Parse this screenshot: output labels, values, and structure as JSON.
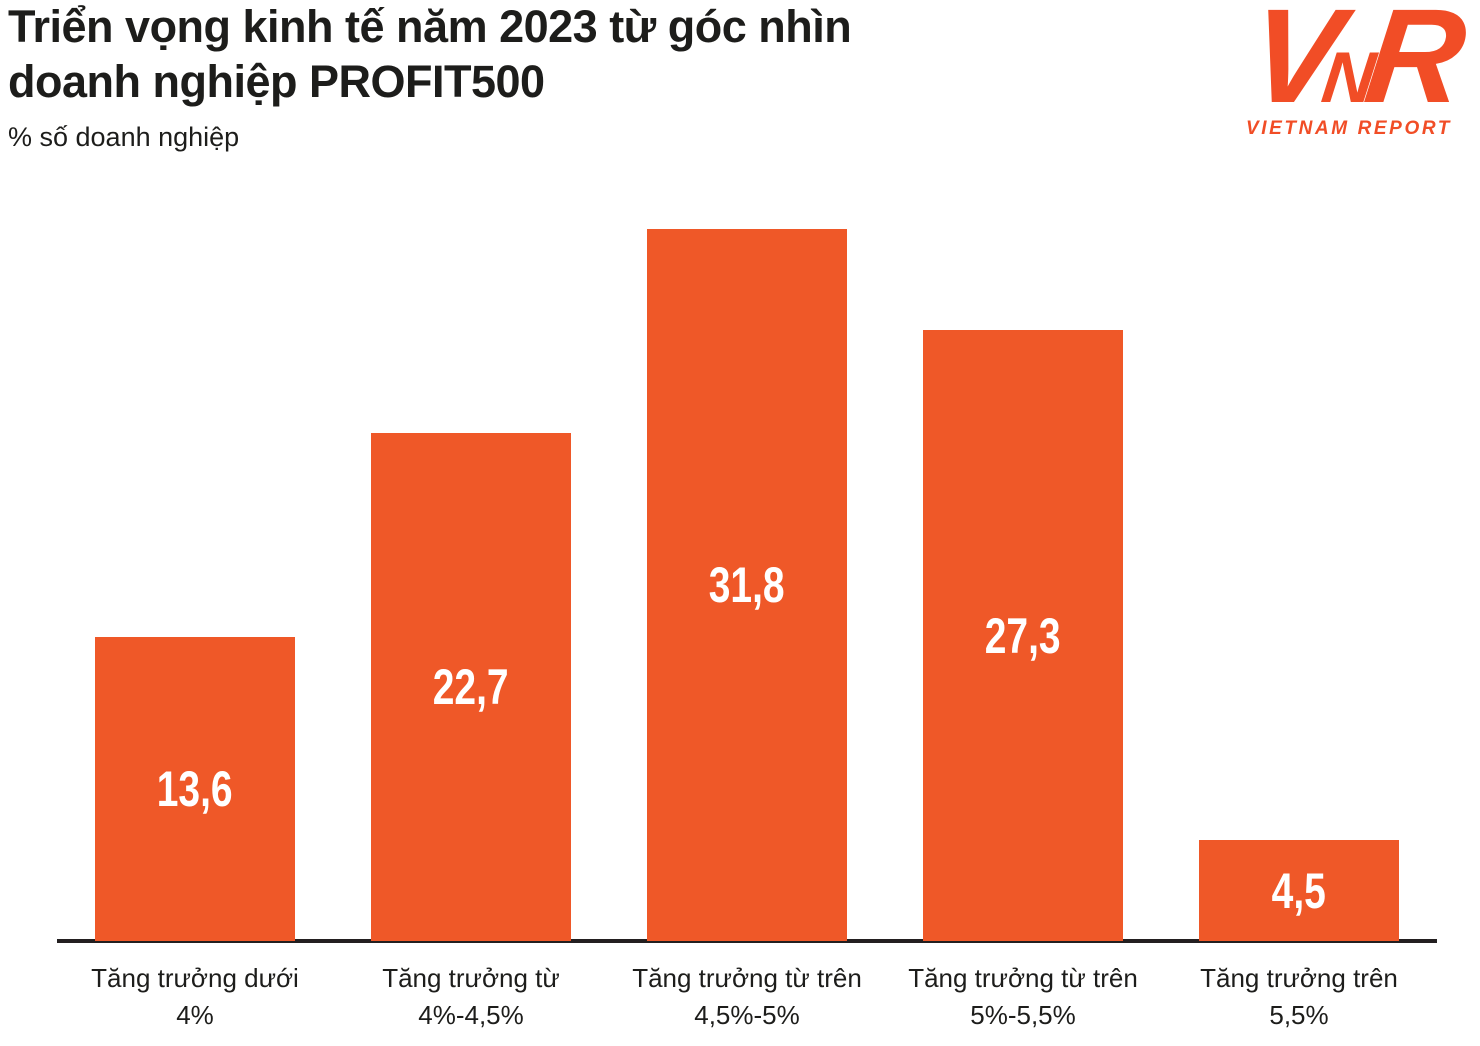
{
  "header": {
    "title": "Triển vọng kinh tế năm 2023 từ góc nhìn doanh nghiệp PROFIT500",
    "subtitle": "% số doanh nghiệp"
  },
  "logo": {
    "letter_v": "V",
    "letter_n": "N",
    "letter_r": "R",
    "caption": "VIETNAM REPORT"
  },
  "colors": {
    "bar": "#EF5828",
    "logo": "#F14D26",
    "axis": "#231F20",
    "text": "#1D1D1B",
    "value_label": "#FFFFFF"
  },
  "chart_data": {
    "type": "bar",
    "title": "Triển vọng kinh tế năm 2023 từ góc nhìn doanh nghiệp PROFIT500",
    "xlabel": "",
    "ylabel": "% số doanh nghiệp",
    "categories": [
      [
        "Tăng trưởng dưới",
        "4%"
      ],
      [
        "Tăng trưởng từ",
        "4%-4,5%"
      ],
      [
        "Tăng trưởng từ trên",
        "4,5%-5%"
      ],
      [
        "Tăng trưởng từ trên",
        "5%-5,5%"
      ],
      [
        "Tăng trưởng trên",
        "5,5%"
      ]
    ],
    "values": [
      13.6,
      22.7,
      31.8,
      27.3,
      4.5
    ],
    "value_labels": [
      "13,6",
      "22,7",
      "31,8",
      "27,3",
      "4,5"
    ],
    "ylim": [
      0,
      33.5
    ],
    "grid": false,
    "legend": false,
    "bar_color": "#EF5828",
    "value_label_color": "#FFFFFF",
    "axis_color": "#231F20"
  }
}
